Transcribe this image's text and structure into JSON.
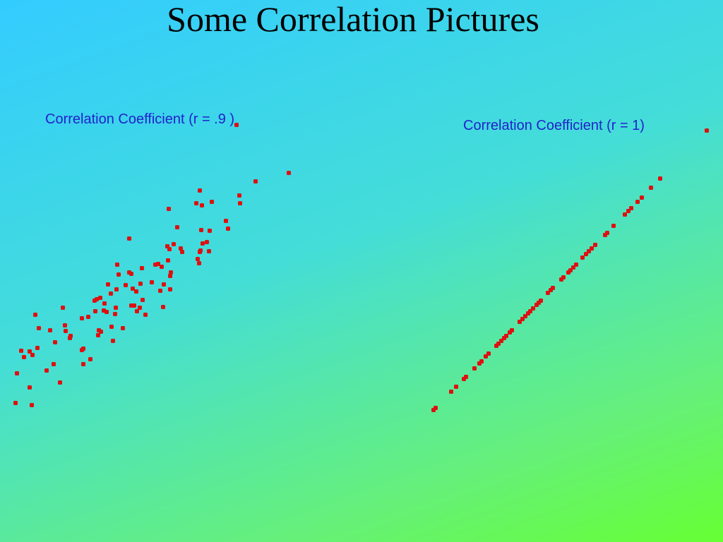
{
  "title": "Some Correlation Pictures",
  "chart_data": [
    {
      "type": "scatter",
      "title": "Correlation Coefficient (r = .9 )",
      "color": "#dd1111",
      "xlim": [
        0,
        420
      ],
      "ylim": [
        0,
        440
      ],
      "x": [
        22,
        45,
        42,
        24,
        30,
        34,
        42,
        46,
        53,
        66,
        76,
        85,
        50,
        55,
        71,
        78,
        92,
        93,
        100,
        99,
        89,
        116,
        118,
        118,
        128,
        116,
        125,
        135,
        134,
        137,
        142,
        148,
        147,
        151,
        140,
        143,
        139,
        158,
        160,
        163,
        164,
        174,
        157,
        165,
        153,
        168,
        166,
        178,
        183,
        186,
        186,
        190,
        194,
        198,
        202,
        206,
        193,
        188,
        199,
        201,
        215,
        220,
        224,
        229,
        227,
        232,
        231,
        241,
        241,
        242,
        240,
        237,
        246,
        256,
        258,
        238,
        183,
        251,
        239,
        284,
        287,
        283,
        296,
        293,
        285,
        297,
        282,
        280,
        278,
        286,
        300,
        283,
        320,
        323,
        339,
        340,
        362,
        409,
        335
      ],
      "values": [
        29,
        26,
        51,
        71,
        103,
        94,
        102,
        97,
        107,
        75,
        84,
        58,
        154,
        135,
        132,
        115,
        139,
        131,
        124,
        121,
        164,
        104,
        106,
        84,
        91,
        149,
        151,
        159,
        174,
        176,
        178,
        170,
        160,
        158,
        132,
        130,
        125,
        137,
        117,
        155,
        164,
        135,
        184,
        190,
        197,
        211,
        225,
        196,
        214,
        212,
        167,
        167,
        159,
        164,
        175,
        154,
        187,
        191,
        198,
        220,
        200,
        225,
        226,
        222,
        188,
        197,
        165,
        190,
        209,
        214,
        247,
        251,
        254,
        248,
        243,
        231,
        262,
        278,
        304,
        245,
        255,
        243,
        244,
        257,
        274,
        273,
        227,
        233,
        312,
        309,
        314,
        330,
        287,
        276,
        323,
        312,
        343,
        355,
        423
      ]
    },
    {
      "type": "scatter",
      "title": "Correlation Coefficient (r =  1)",
      "color": "#dd1111",
      "xlim": [
        0,
        410
      ],
      "ylim": [
        0,
        430
      ],
      "x": [
        14,
        17,
        39,
        46,
        57,
        60,
        72,
        79,
        82,
        88,
        92,
        103,
        106,
        110,
        114,
        117,
        122,
        125,
        136,
        140,
        144,
        148,
        151,
        155,
        160,
        163,
        166,
        176,
        180,
        183,
        195,
        198,
        205,
        208,
        212,
        216,
        225,
        230,
        234,
        238,
        243,
        257,
        260,
        269,
        285,
        290,
        294,
        303,
        309,
        322,
        335,
        401
      ],
      "values": [
        19,
        22,
        45,
        52,
        63,
        66,
        78,
        85,
        88,
        95,
        99,
        110,
        113,
        117,
        121,
        124,
        129,
        132,
        144,
        148,
        152,
        156,
        159,
        163,
        168,
        171,
        174,
        185,
        189,
        192,
        204,
        207,
        214,
        217,
        221,
        225,
        235,
        240,
        244,
        248,
        253,
        267,
        270,
        280,
        296,
        301,
        305,
        314,
        320,
        334,
        347,
        415
      ]
    }
  ]
}
